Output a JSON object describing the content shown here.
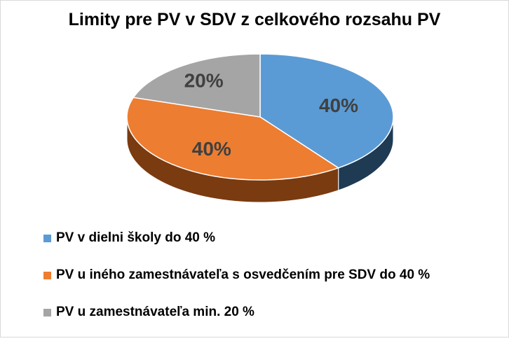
{
  "chart_data": {
    "type": "pie",
    "title": "Limity pre PV v SDV z celkového rozsahu PV",
    "labels": [
      "PV v dielni školy do 40 %",
      "PV u iného zamestnávateľa s osvedčením pre SDV do 40 %",
      "PV u zamestnávateľa min. 20 %"
    ],
    "values": [
      40,
      40,
      20
    ],
    "data_labels": [
      "40%",
      "40%",
      "20%"
    ],
    "colors": [
      "#5b9bd5",
      "#ed7d31",
      "#a5a5a5"
    ],
    "side_colors": [
      "#1f3a53",
      "#7a3b10",
      "#5f5f5f"
    ],
    "style": "3d",
    "legend_position": "bottom-left"
  }
}
